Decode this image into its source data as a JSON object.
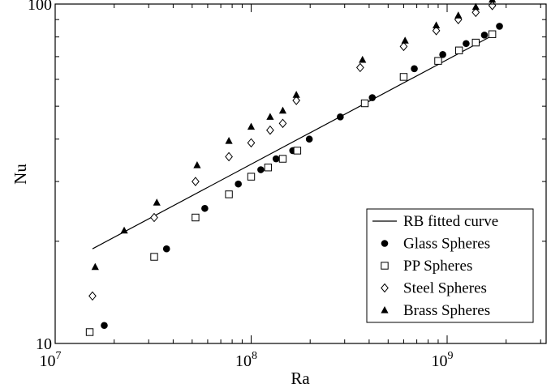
{
  "chart_data": {
    "type": "scatter",
    "xlabel": "Ra",
    "ylabel": "Nu",
    "x_scale": "log",
    "y_scale": "log",
    "xlim": [
      10000000,
      3200000000
    ],
    "ylim": [
      10,
      100
    ],
    "x_ticks": [
      {
        "value": 10000000,
        "base": "10",
        "exp": "7"
      },
      {
        "value": 100000000,
        "base": "10",
        "exp": "8"
      },
      {
        "value": 1000000000,
        "base": "10",
        "exp": "9"
      }
    ],
    "y_ticks": [
      {
        "value": 10,
        "label": "10"
      },
      {
        "value": 100,
        "label": "100"
      }
    ],
    "grid": false,
    "legend_position": "bottom-right",
    "series": [
      {
        "name": "RB fitted curve",
        "marker": "line",
        "x": [
          15500000,
          1650000000
        ],
        "y": [
          19.0,
          80.0
        ]
      },
      {
        "name": "Glass Spheres",
        "marker": "filled-circle",
        "x": [
          17800000,
          37000000,
          58000000,
          86000000,
          112000000,
          134000000,
          163000000,
          198000000,
          285000000,
          415000000,
          680000000,
          950000000,
          1250000000,
          1550000000,
          1850000000
        ],
        "y": [
          11.3,
          19.0,
          25.0,
          29.5,
          32.5,
          35.0,
          37.0,
          40.0,
          46.5,
          53.0,
          64.5,
          71.0,
          76.5,
          81.0,
          86.0
        ]
      },
      {
        "name": "PP Spheres",
        "marker": "open-square",
        "x": [
          15000000,
          32000000,
          52000000,
          77000000,
          100000000,
          122000000,
          145000000,
          172000000,
          380000000,
          600000000,
          900000000,
          1150000000,
          1400000000,
          1700000000
        ],
        "y": [
          10.8,
          18.0,
          23.5,
          27.5,
          31.0,
          33.0,
          35.0,
          37.0,
          51.0,
          61.0,
          68.0,
          73.0,
          77.0,
          81.5
        ]
      },
      {
        "name": "Steel Spheres",
        "marker": "open-diamond",
        "x": [
          15500000,
          32000000,
          52000000,
          77000000,
          100000000,
          125000000,
          145000000,
          170000000,
          360000000,
          600000000,
          880000000,
          1140000000,
          1400000000,
          1700000000
        ],
        "y": [
          13.8,
          23.5,
          30.0,
          35.5,
          39.0,
          42.5,
          44.5,
          52.0,
          65.0,
          75.0,
          83.5,
          90.0,
          94.5,
          99.0
        ]
      },
      {
        "name": "Brass Spheres",
        "marker": "filled-triangle",
        "x": [
          16000000,
          22500000,
          33000000,
          53000000,
          77000000,
          100000000,
          125000000,
          145000000,
          170000000,
          370000000,
          610000000,
          880000000,
          1140000000,
          1400000000,
          1700000000
        ],
        "y": [
          16.8,
          21.5,
          26.0,
          33.5,
          39.5,
          43.5,
          46.5,
          48.5,
          54.0,
          68.5,
          78.0,
          86.5,
          92.5,
          98.0,
          103.0
        ]
      }
    ]
  }
}
